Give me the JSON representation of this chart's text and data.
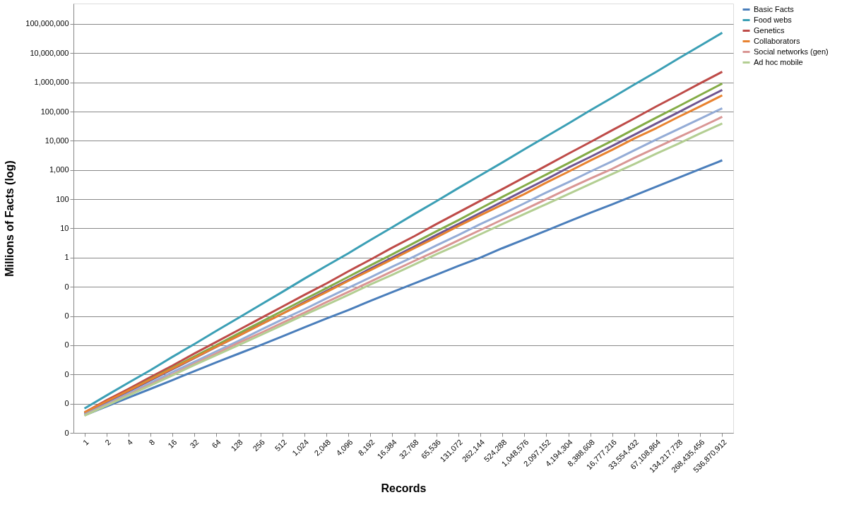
{
  "chart_data": {
    "type": "line",
    "xlabel": "Records",
    "ylabel": "Millions of Facts (log)",
    "log": "y",
    "grid": "y",
    "legend": "right",
    "marker": "none",
    "line_style": "solid",
    "categories": [
      "1",
      "2",
      "4",
      "8",
      "16",
      "32",
      "64",
      "128",
      "256",
      "512",
      "1,024",
      "2,048",
      "4,096",
      "8,192",
      "16,384",
      "32,768",
      "65,536",
      "131,072",
      "262,144",
      "524,288",
      "1,048,576",
      "2,097,152",
      "4,194,304",
      "8,388,608",
      "16,777,216",
      "33,554,432",
      "67,108,864",
      "134,217,728",
      "268,435,456",
      "536,870,912"
    ],
    "ylim": [
      1e-06,
      500000000
    ],
    "yticks": [
      {
        "value": 100000000,
        "label": "100,000,000"
      },
      {
        "value": 10000000,
        "label": "10,000,000"
      },
      {
        "value": 1000000,
        "label": "1,000,000"
      },
      {
        "value": 100000,
        "label": "100,000"
      },
      {
        "value": 10000,
        "label": "10,000"
      },
      {
        "value": 1000,
        "label": "1,000"
      },
      100,
      10,
      1,
      {
        "value": 0.1,
        "label": "0"
      },
      {
        "value": 0.01,
        "label": "0"
      },
      {
        "value": 0.001,
        "label": "0"
      },
      {
        "value": 0.0001,
        "label": "0"
      },
      {
        "value": 1e-05,
        "label": "0"
      },
      {
        "value": 1e-06,
        "label": "0"
      }
    ],
    "series": [
      {
        "name": "Basic Facts",
        "color": "#4a7ebb",
        "values": [
          4e-06,
          8e-06,
          1.6e-05,
          3.2e-05,
          6.4e-05,
          0.00013,
          0.00026,
          0.00051,
          0.001,
          0.002,
          0.0041,
          0.0082,
          0.016,
          0.033,
          0.066,
          0.13,
          0.26,
          0.52,
          1.0,
          2.1,
          4.2,
          8.4,
          17,
          34,
          67,
          134,
          268,
          537,
          1074,
          2147
        ]
      },
      {
        "name": "Food webs",
        "color": "#3b9fb5",
        "values": [
          6.8e-06,
          1.9e-05,
          5.2e-05,
          0.00014,
          0.0004,
          0.0011,
          0.0031,
          0.0086,
          0.024,
          0.067,
          0.19,
          0.52,
          1.4,
          4.0,
          11,
          31,
          85,
          240,
          660,
          1800,
          5100,
          14000,
          39000,
          110000,
          300000,
          840000,
          2300000,
          6500000,
          18000000,
          50000000
        ]
      },
      {
        "name": "Genetics",
        "color": "#be4b48",
        "values": [
          5e-06,
          1.3e-05,
          3.2e-05,
          8.1e-05,
          0.0002,
          0.00052,
          0.0013,
          0.0033,
          0.0083,
          0.021,
          0.053,
          0.13,
          0.34,
          0.85,
          2.2,
          5.4,
          14,
          35,
          88,
          220,
          560,
          1400,
          3600,
          9000,
          23000,
          58000,
          150000,
          370000,
          930000,
          2300000
        ]
      },
      {
        "color": "#84ac46",
        "values": [
          4.7e-06,
          1.1e-05,
          2.8e-05,
          6.9e-05,
          0.00017,
          0.00041,
          0.001,
          0.0025,
          0.0061,
          0.015,
          0.037,
          0.09,
          0.22,
          0.54,
          1.3,
          3.2,
          7.9,
          19,
          48,
          120,
          290,
          700,
          1700,
          4200,
          10000,
          25000,
          62000,
          150000,
          370000,
          910000
        ]
      },
      {
        "color": "#6f5590",
        "values": [
          4.5e-06,
          1.1e-05,
          2.6e-05,
          6.3e-05,
          0.00015,
          0.00036,
          0.00088,
          0.0021,
          0.0051,
          0.012,
          0.03,
          0.072,
          0.17,
          0.42,
          1.0,
          2.4,
          5.9,
          14,
          34,
          82,
          200,
          480,
          1200,
          2800,
          6700,
          16000,
          39000,
          94000,
          230000,
          550000
        ]
      },
      {
        "name": "Collaborators",
        "color": "#e8822f",
        "values": [
          5e-06,
          1.2e-05,
          2.8e-05,
          6.7e-05,
          0.00016,
          0.00037,
          0.00089,
          0.0021,
          0.005,
          0.012,
          0.028,
          0.066,
          0.16,
          0.37,
          0.88,
          2.1,
          4.9,
          12,
          28,
          65,
          150,
          370,
          870,
          2100,
          4900,
          12000,
          27000,
          65000,
          150000,
          360000
        ]
      },
      {
        "color": "#94acd6",
        "values": [
          4.2e-06,
          9.6e-06,
          2.2e-05,
          5.1e-05,
          0.00012,
          0.00027,
          0.00062,
          0.0014,
          0.0033,
          0.0076,
          0.017,
          0.04,
          0.092,
          0.21,
          0.49,
          1.1,
          2.6,
          5.9,
          14,
          31,
          72,
          170,
          380,
          880,
          2000,
          4700,
          11000,
          25000,
          57000,
          130000
        ]
      },
      {
        "name": "Social networks (gen)",
        "color": "#d99694",
        "values": [
          4e-06,
          9e-06,
          2e-05,
          4.5e-05,
          0.0001,
          0.00023,
          0.00052,
          0.0012,
          0.0026,
          0.0059,
          0.013,
          0.03,
          0.067,
          0.15,
          0.34,
          0.77,
          1.7,
          3.9,
          8.8,
          20,
          44,
          100,
          230,
          510,
          1100,
          2600,
          5800,
          13000,
          29000,
          66000
        ]
      },
      {
        "name": "Ad hoc mobile",
        "color": "#b3ce92",
        "values": [
          3.9e-06,
          8.6e-06,
          1.9e-05,
          4.2e-05,
          9.3e-05,
          0.00021,
          0.00046,
          0.001,
          0.0022,
          0.0049,
          0.011,
          0.024,
          0.053,
          0.12,
          0.26,
          0.58,
          1.3,
          2.8,
          6.3,
          14,
          31,
          68,
          150,
          330,
          730,
          1600,
          3600,
          7900,
          18000,
          39000
        ]
      }
    ]
  }
}
